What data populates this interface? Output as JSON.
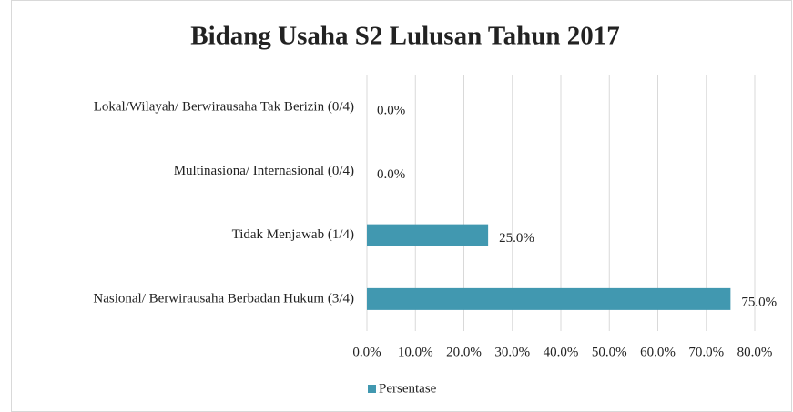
{
  "chart_data": {
    "type": "hbar",
    "title": "Bidang Usaha S2 Lulusan Tahun 2017",
    "categories": [
      "Lokal/Wilayah/ Berwirausaha Tak Berizin (0/4)",
      "Multinasiona/ Internasional (0/4)",
      "Tidak Menjawab (1/4)",
      "Nasional/ Berwirausaha Berbadan Hukum (3/4)"
    ],
    "series": [
      {
        "name": "Persentase",
        "color": "#4198b0",
        "values": [
          0,
          0,
          25,
          75
        ],
        "value_labels": [
          "0.0%",
          "0.0%",
          "25.0%",
          "75.0%"
        ]
      }
    ],
    "xlim": [
      0,
      80
    ],
    "xticks": [
      {
        "value": 0,
        "label": "0.0%"
      },
      {
        "value": 10,
        "label": "10.0%"
      },
      {
        "value": 20,
        "label": "20.0%"
      },
      {
        "value": 30,
        "label": "30.0%"
      },
      {
        "value": 40,
        "label": "40.0%"
      },
      {
        "value": 50,
        "label": "50.0%"
      },
      {
        "value": 60,
        "label": "60.0%"
      },
      {
        "value": 70,
        "label": "70.0%"
      },
      {
        "value": 80,
        "label": "80.0%"
      }
    ],
    "grid": true,
    "legend": "bottom-left"
  }
}
